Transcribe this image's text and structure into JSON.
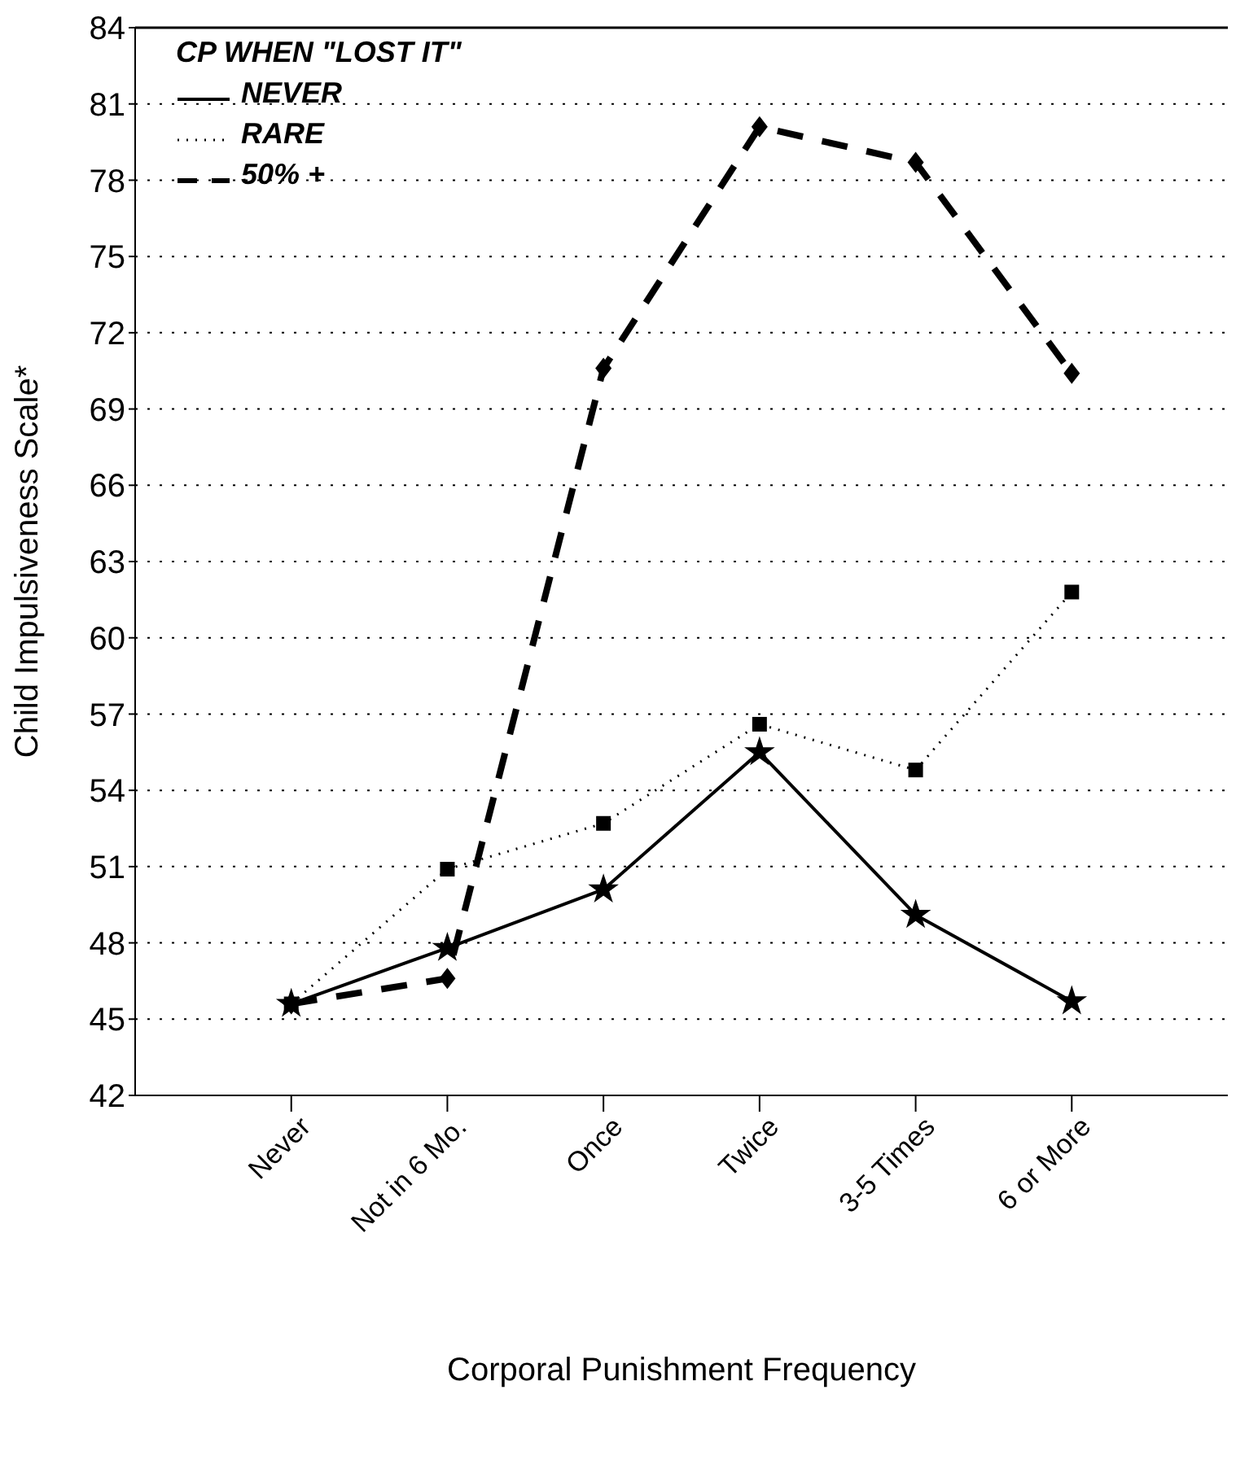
{
  "chart_data": {
    "type": "line",
    "xlabel": "Corporal Punishment Frequency",
    "ylabel": "Child Impulsiveness Scale*",
    "legend_title": "CP WHEN \"LOST IT\"",
    "categories": [
      "Never",
      "Not in 6 Mo.",
      "Once",
      "Twice",
      "3-5 Times",
      "6 or More"
    ],
    "series": [
      {
        "name": "NEVER",
        "color": "#000000",
        "line_style": "solid",
        "marker": "star",
        "values": [
          45.6,
          47.8,
          50.1,
          55.5,
          49.1,
          45.7
        ]
      },
      {
        "name": "RARE",
        "color": "#000000",
        "line_style": "dotted",
        "marker": "square",
        "values": [
          45.6,
          50.9,
          52.7,
          56.6,
          54.8,
          61.8
        ]
      },
      {
        "name": "50% +",
        "color": "#000000",
        "line_style": "dashed",
        "marker": "diamond",
        "values": [
          45.6,
          46.6,
          70.6,
          80.1,
          78.7,
          70.4
        ]
      }
    ],
    "ylim": [
      42,
      84
    ],
    "yticks": [
      42,
      45,
      48,
      51,
      54,
      57,
      60,
      63,
      66,
      69,
      72,
      75,
      78,
      81,
      84
    ],
    "grid": "y",
    "legend": "top left"
  }
}
